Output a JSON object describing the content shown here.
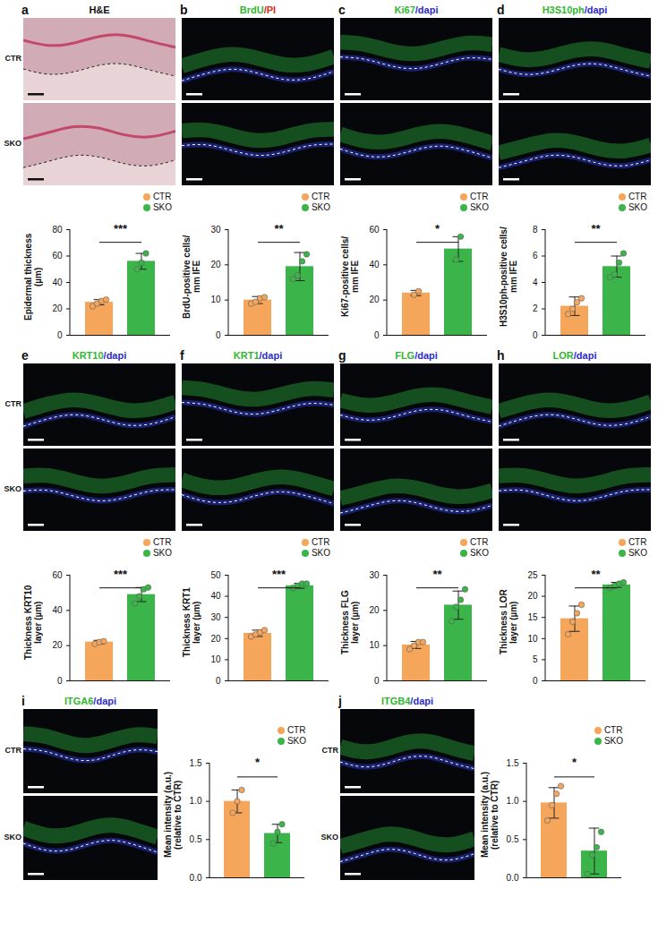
{
  "chart_data": [
    {
      "type": "bar",
      "panel": "a",
      "stain": [
        {
          "text": "H&E",
          "color": "#111111"
        }
      ],
      "row_labels": [
        "CTR",
        "SKO"
      ],
      "y_label": "Epidermal thickness\n(µm)",
      "categories": [
        "CTR",
        "SKO"
      ],
      "colors": [
        "#f5a65b",
        "#3bb54a"
      ],
      "values": [
        25,
        56
      ],
      "error": [
        2,
        6
      ],
      "points": [
        [
          22,
          24,
          26,
          27
        ],
        [
          50,
          55,
          62
        ]
      ],
      "significance": "***",
      "ylim": [
        0,
        80
      ],
      "yticks": [
        0,
        20,
        40,
        60,
        80
      ],
      "legend": "top-right",
      "tick_labels": "y"
    },
    {
      "type": "bar",
      "panel": "b",
      "stain": [
        {
          "text": "BrdU",
          "color": "#2db82d"
        },
        {
          "text": "/PI",
          "color": "#d42a20"
        }
      ],
      "y_label": "BrdU-positive cells/\nmm IFE",
      "categories": [
        "CTR",
        "SKO"
      ],
      "colors": [
        "#f5a65b",
        "#3bb54a"
      ],
      "values": [
        10,
        19.5
      ],
      "error": [
        1,
        4
      ],
      "points": [
        [
          9,
          9.5,
          10.5,
          10.8
        ],
        [
          16,
          17,
          21,
          23
        ]
      ],
      "significance": "**",
      "ylim": [
        0,
        30
      ],
      "yticks": [
        0,
        10,
        20,
        30
      ],
      "legend": "top-right",
      "tick_labels": "y"
    },
    {
      "type": "bar",
      "panel": "c",
      "stain": [
        {
          "text": "Ki67",
          "color": "#2db82d"
        },
        {
          "text": "/dapi",
          "color": "#2b2bd0"
        }
      ],
      "y_label": "Ki67-positive cells/\nmm IFE",
      "categories": [
        "CTR",
        "SKO"
      ],
      "colors": [
        "#f5a65b",
        "#3bb54a"
      ],
      "values": [
        24,
        49
      ],
      "error": [
        1.5,
        7
      ],
      "points": [
        [
          23,
          25
        ],
        [
          43,
          56
        ]
      ],
      "significance": "*",
      "ylim": [
        0,
        60
      ],
      "yticks": [
        0,
        20,
        40,
        60
      ],
      "legend": "top-right",
      "tick_labels": "y"
    },
    {
      "type": "bar",
      "panel": "d",
      "stain": [
        {
          "text": "H3S10ph",
          "color": "#2db82d"
        },
        {
          "text": "/dapi",
          "color": "#2b2bd0"
        }
      ],
      "y_label": "H3S10ph-positive cells/\nmm IFE",
      "categories": [
        "CTR",
        "SKO"
      ],
      "colors": [
        "#f5a65b",
        "#3bb54a"
      ],
      "values": [
        2.2,
        5.2
      ],
      "error": [
        0.7,
        0.8
      ],
      "points": [
        [
          1.6,
          2,
          2.5,
          2.8
        ],
        [
          4.4,
          4.6,
          5.5,
          6.2
        ]
      ],
      "significance": "**",
      "ylim": [
        0,
        8
      ],
      "yticks": [
        0,
        2,
        4,
        6,
        8
      ],
      "legend": "top-right",
      "tick_labels": "y"
    },
    {
      "type": "bar",
      "panel": "e",
      "stain": [
        {
          "text": "KRT10",
          "color": "#2db82d"
        },
        {
          "text": "/dapi",
          "color": "#2b2bd0"
        }
      ],
      "row_labels": [
        "CTR",
        "SKO"
      ],
      "y_label": "Thickness KRT10\nlayer (µm)",
      "categories": [
        "CTR",
        "SKO"
      ],
      "colors": [
        "#f5a65b",
        "#3bb54a"
      ],
      "values": [
        22,
        49
      ],
      "error": [
        1,
        4
      ],
      "points": [
        [
          21,
          22,
          22.5
        ],
        [
          44,
          48,
          52,
          53
        ]
      ],
      "significance": "***",
      "ylim": [
        0,
        60
      ],
      "yticks": [
        0,
        20,
        40,
        60
      ],
      "legend": "top-right",
      "tick_labels": "y"
    },
    {
      "type": "bar",
      "panel": "f",
      "stain": [
        {
          "text": "KRT1",
          "color": "#2db82d"
        },
        {
          "text": "/dapi",
          "color": "#2b2bd0"
        }
      ],
      "y_label": "Thickness KRT1\nlayer (µm)",
      "categories": [
        "CTR",
        "SKO"
      ],
      "colors": [
        "#f5a65b",
        "#3bb54a"
      ],
      "values": [
        22.5,
        45
      ],
      "error": [
        1.5,
        1.2
      ],
      "points": [
        [
          21,
          22,
          23,
          24
        ],
        [
          44,
          45,
          46,
          46
        ]
      ],
      "significance": "***",
      "ylim": [
        0,
        50
      ],
      "yticks": [
        0,
        10,
        20,
        30,
        40,
        50
      ],
      "legend": "top-right",
      "tick_labels": "y"
    },
    {
      "type": "bar",
      "panel": "g",
      "stain": [
        {
          "text": "FLG",
          "color": "#2db82d"
        },
        {
          "text": "/dapi",
          "color": "#2b2bd0"
        }
      ],
      "y_label": "Thickness FLG\nlayer (µm)",
      "categories": [
        "CTR",
        "SKO"
      ],
      "colors": [
        "#f5a65b",
        "#3bb54a"
      ],
      "values": [
        10.2,
        21.5
      ],
      "error": [
        1,
        4
      ],
      "points": [
        [
          9,
          10,
          11,
          11
        ],
        [
          17,
          21,
          23,
          26
        ]
      ],
      "significance": "**",
      "ylim": [
        0,
        30
      ],
      "yticks": [
        0,
        10,
        20,
        30
      ],
      "legend": "top-right",
      "tick_labels": "y"
    },
    {
      "type": "bar",
      "panel": "h",
      "stain": [
        {
          "text": "LOR",
          "color": "#2db82d"
        },
        {
          "text": "/dapi",
          "color": "#2b2bd0"
        }
      ],
      "y_label": "Thickness LOR\nlayer (µm)",
      "categories": [
        "CTR",
        "SKO"
      ],
      "colors": [
        "#f5a65b",
        "#3bb54a"
      ],
      "values": [
        14.7,
        22.7
      ],
      "error": [
        3,
        0.6
      ],
      "points": [
        [
          11,
          14,
          16,
          18
        ],
        [
          22,
          22.5,
          23,
          23.3
        ]
      ],
      "significance": "**",
      "ylim": [
        0,
        25
      ],
      "yticks": [
        0,
        5,
        10,
        15,
        20,
        25
      ],
      "legend": "top-right",
      "tick_labels": "y"
    },
    {
      "type": "bar",
      "panel": "i",
      "stain": [
        {
          "text": "ITGA6",
          "color": "#2db82d"
        },
        {
          "text": "/dapi",
          "color": "#2b2bd0"
        }
      ],
      "row_labels": [
        "CTR",
        "SKO"
      ],
      "y_label": "Mean intensity (a.u.)\n(relative to CTR)",
      "categories": [
        "CTR",
        "SKO"
      ],
      "colors": [
        "#f5a65b",
        "#3bb54a"
      ],
      "values": [
        1.0,
        0.58
      ],
      "error": [
        0.15,
        0.12
      ],
      "points": [
        [
          0.85,
          1.0,
          1.15
        ],
        [
          0.45,
          0.6,
          0.7
        ]
      ],
      "significance": "*",
      "ylim": [
        0,
        1.5
      ],
      "yticks": [
        {
          "value": 0,
          "label": "0.0"
        },
        {
          "value": 0.5,
          "label": "0.5"
        },
        {
          "value": 1,
          "label": "1.0"
        },
        {
          "value": 1.5,
          "label": "1.5"
        }
      ],
      "legend": "top-right",
      "tick_labels": "y"
    },
    {
      "type": "bar",
      "panel": "j",
      "stain": [
        {
          "text": "ITGB4",
          "color": "#2db82d"
        },
        {
          "text": "/dapi",
          "color": "#2b2bd0"
        }
      ],
      "row_labels": [
        "CTR",
        "SKO"
      ],
      "y_label": "Mean intensity (a.u.)\n(relative to CTR)",
      "categories": [
        "CTR",
        "SKO"
      ],
      "colors": [
        "#f5a65b",
        "#3bb54a"
      ],
      "values": [
        0.98,
        0.35
      ],
      "error": [
        0.2,
        0.3
      ],
      "points": [
        [
          0.75,
          0.95,
          1.1,
          1.2
        ],
        [
          0.05,
          0.3,
          0.4,
          0.6
        ]
      ],
      "significance": "*",
      "ylim": [
        0,
        1.5
      ],
      "yticks": [
        {
          "value": 0,
          "label": "0.0"
        },
        {
          "value": 0.5,
          "label": "0.5"
        },
        {
          "value": 1,
          "label": "1.0"
        },
        {
          "value": 1.5,
          "label": "1.5"
        }
      ],
      "legend": "top-right",
      "tick_labels": "y"
    }
  ]
}
